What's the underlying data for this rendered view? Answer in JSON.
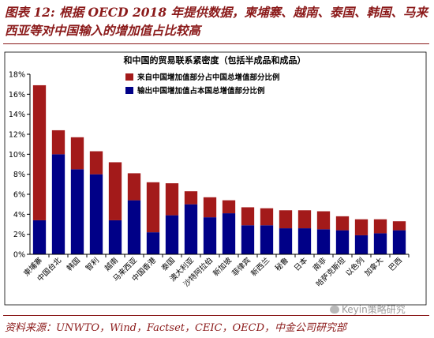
{
  "figure": {
    "title": "图表 12: 根据 OECD 2018 年提供数据，柬埔寨、越南、泰国、韩国、马来西亚等对中国输入的增加值占比较高",
    "source": "资料来源：UNWTO，Wind，Factset，CEIC，OECD，中金公司研究部",
    "watermark": "Keyin策略研究"
  },
  "colors": {
    "top": "#a31a1a",
    "bottom": "#000087",
    "axis": "#000000",
    "title": "#8b1a1a"
  },
  "chart_data": {
    "type": "bar",
    "stacked": true,
    "title": "和中国的贸易联系紧密度（包括半成品和成品）",
    "xlabel": "",
    "ylabel": "",
    "ylim": [
      0,
      18
    ],
    "yticks": [
      "0%",
      "2%",
      "4%",
      "6%",
      "8%",
      "10%",
      "12%",
      "14%",
      "16%",
      "18%"
    ],
    "grid": false,
    "legend_position": "top-left",
    "categories": [
      "柬埔寨",
      "中国台北",
      "韩国",
      "智利",
      "越南",
      "马来西亚",
      "中国香港",
      "泰国",
      "澳大利亚",
      "沙特阿拉伯",
      "新加坡",
      "菲律宾",
      "新西兰",
      "秘鲁",
      "日本",
      "南非",
      "哈萨克斯坦",
      "以色列",
      "加拿大",
      "巴西"
    ],
    "series": [
      {
        "name": "输出中国增加值占本国总增值部分比例",
        "values": [
          3.4,
          10.0,
          8.5,
          8.0,
          3.4,
          5.4,
          2.2,
          3.9,
          5.0,
          3.7,
          4.1,
          2.9,
          2.9,
          2.6,
          2.6,
          2.5,
          2.4,
          1.9,
          2.1,
          2.4
        ]
      },
      {
        "name": "来自中国增加值部分占中国总增值部分比例",
        "values": [
          13.5,
          2.4,
          3.2,
          2.3,
          5.8,
          2.7,
          5.0,
          3.2,
          1.3,
          2.0,
          1.3,
          1.8,
          1.7,
          1.8,
          1.8,
          1.8,
          1.4,
          1.6,
          1.4,
          0.9
        ]
      }
    ]
  }
}
